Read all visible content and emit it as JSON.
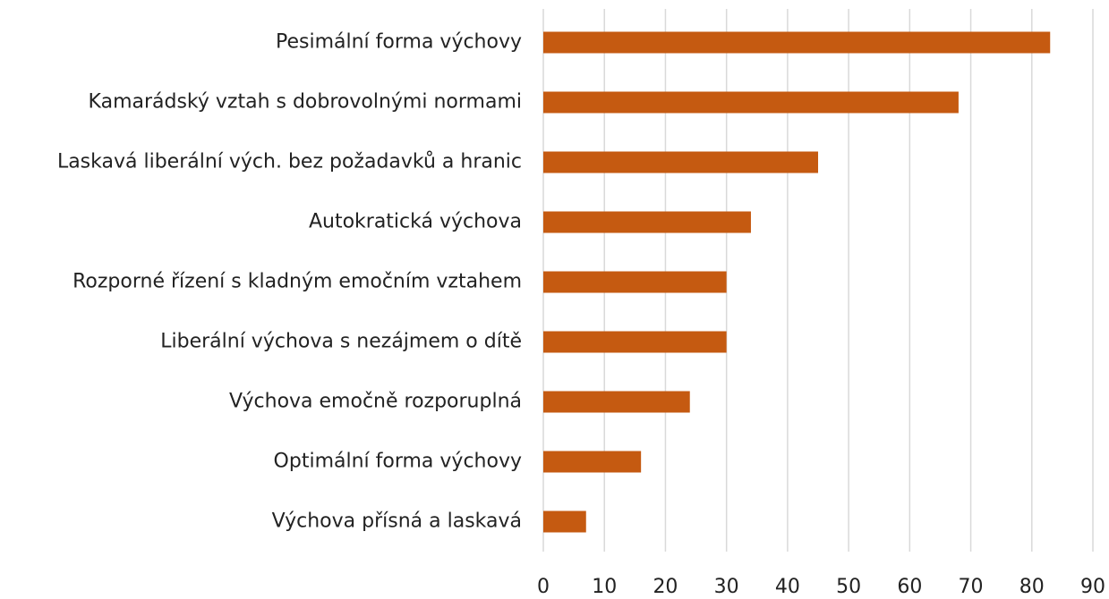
{
  "chart_data": {
    "type": "bar",
    "orientation": "horizontal",
    "categories": [
      "Pesimální forma výchovy",
      "Kamarádský vztah s dobrovolnými normami",
      "Laskavá liberální vých. bez požadavků a hranic",
      "Autokratická výchova",
      "Rozporné řízení s kladným emočním vztahem",
      "Liberální výchova s nezájmem o dítě",
      "Výchova emočně rozporuplná",
      "Optimální forma výchovy",
      "Výchova přísná a laskavá"
    ],
    "values": [
      83,
      68,
      45,
      34,
      30,
      30,
      24,
      16,
      7
    ],
    "color": "#c55a11",
    "xlim": [
      0,
      90
    ],
    "xticks": [
      0,
      10,
      20,
      30,
      40,
      50,
      60,
      70,
      80,
      90
    ],
    "grid": true
  }
}
